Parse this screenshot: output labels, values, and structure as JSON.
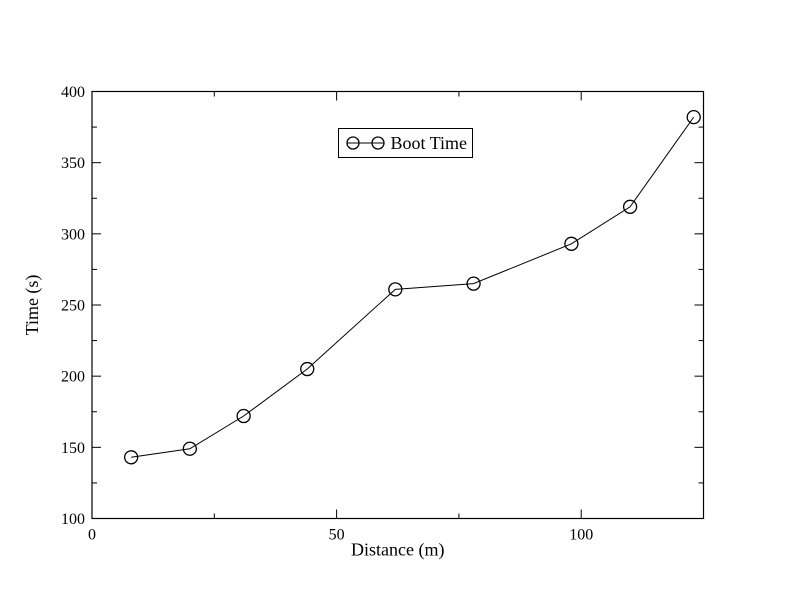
{
  "chart_data": {
    "type": "line",
    "title": "",
    "xlabel": "Distance (m)",
    "ylabel": "Time (s)",
    "xlim": [
      0,
      125
    ],
    "ylim": [
      100,
      400
    ],
    "x_major_ticks": [
      0,
      50,
      100
    ],
    "x_tick_labels": [
      "0",
      "50",
      "100"
    ],
    "x_minor_ticks": [
      25,
      75,
      125
    ],
    "y_major_ticks": [
      100,
      150,
      200,
      250,
      300,
      350,
      400
    ],
    "y_tick_labels": [
      "100",
      "150",
      "200",
      "250",
      "300",
      "350",
      "400"
    ],
    "y_minor_ticks": [
      125,
      175,
      225,
      275,
      325,
      375
    ],
    "grid": false,
    "legend": {
      "entries": [
        "Boot Time"
      ],
      "position": "top-center"
    },
    "series": [
      {
        "name": "Boot Time",
        "marker": "open-circle",
        "color": "#000000",
        "x": [
          8,
          20,
          31,
          44,
          62,
          78,
          98,
          110,
          123
        ],
        "y": [
          143,
          149,
          172,
          205,
          261,
          265,
          293,
          319,
          382
        ]
      }
    ],
    "colors": {
      "foreground": "#000000",
      "background": "#ffffff"
    }
  }
}
